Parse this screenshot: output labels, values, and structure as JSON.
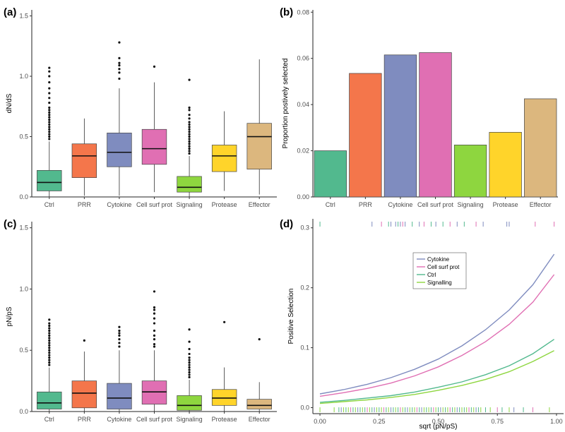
{
  "colors": {
    "Ctrl": "#52b98e",
    "PRR": "#f4764b",
    "Cytokine": "#7f8cbf",
    "Cell surf prot": "#e06fb3",
    "Signaling": "#8ed63f",
    "Protease": "#ffd42a",
    "Effector": "#dcb77e"
  },
  "chart_data": [
    {
      "id": "a",
      "panel_label": "(a)",
      "type": "box",
      "ylabel": "dN/dS",
      "ylim": [
        0,
        1.55
      ],
      "yticks": [
        0.0,
        0.5,
        1.0,
        1.5
      ],
      "ytick_labels": [
        "0.0",
        "0.5",
        "1.0",
        "1.5"
      ],
      "categories": [
        "Ctrl",
        "PRR",
        "Cytokine",
        "Cell surf prot",
        "Signaling",
        "Protease",
        "Effector"
      ],
      "boxes": [
        {
          "min": 0.0,
          "q1": 0.05,
          "median": 0.12,
          "q3": 0.22,
          "max": 0.46,
          "outliers": [
            0.48,
            0.5,
            0.52,
            0.54,
            0.56,
            0.58,
            0.6,
            0.62,
            0.64,
            0.66,
            0.68,
            0.7,
            0.72,
            0.74,
            0.78,
            0.82,
            0.86,
            0.9,
            0.95,
            1.0,
            1.04,
            1.07
          ]
        },
        {
          "min": 0.01,
          "q1": 0.16,
          "median": 0.34,
          "q3": 0.44,
          "max": 0.65,
          "outliers": []
        },
        {
          "min": 0.01,
          "q1": 0.25,
          "median": 0.37,
          "q3": 0.53,
          "max": 0.9,
          "outliers": [
            0.98,
            1.03,
            1.06,
            1.09,
            1.11,
            1.15,
            1.28
          ]
        },
        {
          "min": 0.04,
          "q1": 0.27,
          "median": 0.4,
          "q3": 0.56,
          "max": 0.95,
          "outliers": [
            1.08
          ]
        },
        {
          "min": 0.0,
          "q1": 0.04,
          "median": 0.08,
          "q3": 0.17,
          "max": 0.34,
          "outliers": [
            0.36,
            0.38,
            0.4,
            0.42,
            0.44,
            0.46,
            0.48,
            0.5,
            0.52,
            0.54,
            0.56,
            0.58,
            0.6,
            0.62,
            0.65,
            0.68,
            0.72,
            0.74,
            0.97
          ]
        },
        {
          "min": 0.05,
          "q1": 0.21,
          "median": 0.34,
          "q3": 0.43,
          "max": 0.71,
          "outliers": []
        },
        {
          "min": 0.02,
          "q1": 0.23,
          "median": 0.5,
          "q3": 0.61,
          "max": 1.14,
          "outliers": []
        }
      ]
    },
    {
      "id": "b",
      "panel_label": "(b)",
      "type": "bar",
      "ylabel": "Proportion postively selected",
      "ylim": [
        0,
        0.081
      ],
      "yticks": [
        0.0,
        0.02,
        0.04,
        0.06,
        0.08
      ],
      "ytick_labels": [
        "0.00",
        "0.02",
        "0.04",
        "0.06",
        "0.08"
      ],
      "categories": [
        "Ctrl",
        "PRR",
        "Cytokine",
        "Cell surf prot",
        "Signaling",
        "Protease",
        "Effector"
      ],
      "values": [
        0.02,
        0.0535,
        0.0615,
        0.0625,
        0.0225,
        0.028,
        0.0425
      ]
    },
    {
      "id": "c",
      "panel_label": "(c)",
      "type": "box",
      "ylabel": "pN/pS",
      "ylim": [
        0,
        1.55
      ],
      "yticks": [
        0.0,
        0.5,
        1.0,
        1.5
      ],
      "ytick_labels": [
        "0.0",
        "0.5",
        "1.0",
        "1.5"
      ],
      "categories": [
        "Ctrl",
        "PRR",
        "Cytokine",
        "Cell surf prot",
        "Signaling",
        "Protease",
        "Effector"
      ],
      "boxes": [
        {
          "min": 0.0,
          "q1": 0.02,
          "median": 0.07,
          "q3": 0.16,
          "max": 0.36,
          "outliers": [
            0.38,
            0.4,
            0.42,
            0.44,
            0.46,
            0.48,
            0.5,
            0.52,
            0.54,
            0.56,
            0.58,
            0.6,
            0.62,
            0.64,
            0.66,
            0.68,
            0.7,
            0.72,
            0.75
          ]
        },
        {
          "min": 0.0,
          "q1": 0.03,
          "median": 0.15,
          "q3": 0.25,
          "max": 0.49,
          "outliers": [
            0.58
          ]
        },
        {
          "min": 0.0,
          "q1": 0.02,
          "median": 0.11,
          "q3": 0.23,
          "max": 0.5,
          "outliers": [
            0.53,
            0.56,
            0.59,
            0.62,
            0.64,
            0.66,
            0.69
          ]
        },
        {
          "min": 0.0,
          "q1": 0.06,
          "median": 0.16,
          "q3": 0.25,
          "max": 0.5,
          "outliers": [
            0.53,
            0.55,
            0.59,
            0.62,
            0.66,
            0.72,
            0.76,
            0.8,
            0.83,
            0.85,
            0.98
          ]
        },
        {
          "min": 0.0,
          "q1": 0.01,
          "median": 0.05,
          "q3": 0.13,
          "max": 0.26,
          "outliers": [
            0.28,
            0.3,
            0.32,
            0.34,
            0.36,
            0.38,
            0.4,
            0.42,
            0.44,
            0.47,
            0.51,
            0.57,
            0.67
          ]
        },
        {
          "min": 0.0,
          "q1": 0.05,
          "median": 0.11,
          "q3": 0.18,
          "max": 0.36,
          "outliers": [
            0.73
          ]
        },
        {
          "min": 0.0,
          "q1": 0.02,
          "median": 0.05,
          "q3": 0.1,
          "max": 0.24,
          "outliers": [
            0.59
          ]
        }
      ]
    },
    {
      "id": "d",
      "panel_label": "(d)",
      "type": "line",
      "xlabel": "sqrt (pN/pS)",
      "ylabel": "Positive Selection",
      "xlim": [
        -0.03,
        1.03
      ],
      "ylim": [
        -0.01,
        0.315
      ],
      "xticks": [
        0.0,
        0.25,
        0.5,
        0.75,
        1.0
      ],
      "xtick_labels": [
        "0.00",
        "0.25",
        "0.50",
        "0.75",
        "1.00"
      ],
      "yticks": [
        0.0,
        0.1,
        0.2,
        0.3
      ],
      "ytick_labels": [
        "0.0",
        "0.1",
        "0.2",
        "0.3"
      ],
      "legend_position": "upper-middle",
      "series": [
        {
          "name": "Cytokine",
          "color": "#7f8cbf",
          "x": [
            0.0,
            0.1,
            0.2,
            0.3,
            0.4,
            0.5,
            0.6,
            0.7,
            0.8,
            0.9,
            0.99
          ],
          "y": [
            0.023,
            0.03,
            0.039,
            0.05,
            0.064,
            0.081,
            0.103,
            0.13,
            0.163,
            0.205,
            0.256
          ]
        },
        {
          "name": "Cell surf prot",
          "color": "#e06fb3",
          "x": [
            0.0,
            0.1,
            0.2,
            0.3,
            0.4,
            0.5,
            0.6,
            0.7,
            0.8,
            0.9,
            0.99
          ],
          "y": [
            0.019,
            0.025,
            0.032,
            0.041,
            0.053,
            0.068,
            0.087,
            0.11,
            0.139,
            0.176,
            0.222
          ]
        },
        {
          "name": "Ctrl",
          "color": "#52b98e",
          "x": [
            0.0,
            0.1,
            0.2,
            0.3,
            0.4,
            0.5,
            0.6,
            0.7,
            0.8,
            0.9,
            0.99
          ],
          "y": [
            0.009,
            0.012,
            0.016,
            0.02,
            0.026,
            0.034,
            0.043,
            0.055,
            0.07,
            0.09,
            0.114
          ]
        },
        {
          "name": "Signalling",
          "color": "#8ed63f",
          "x": [
            0.0,
            0.1,
            0.2,
            0.3,
            0.4,
            0.5,
            0.6,
            0.7,
            0.8,
            0.9,
            0.99
          ],
          "y": [
            0.007,
            0.01,
            0.013,
            0.017,
            0.022,
            0.029,
            0.037,
            0.047,
            0.06,
            0.077,
            0.095
          ]
        }
      ],
      "rug_top": [
        {
          "x": 0.0,
          "group": "Ctrl"
        },
        {
          "x": 0.22,
          "group": "Cytokine"
        },
        {
          "x": 0.26,
          "group": "Cell surf prot"
        },
        {
          "x": 0.29,
          "group": "Ctrl"
        },
        {
          "x": 0.3,
          "group": "Cytokine"
        },
        {
          "x": 0.32,
          "group": "Cytokine"
        },
        {
          "x": 0.33,
          "group": "Ctrl"
        },
        {
          "x": 0.34,
          "group": "Cytokine"
        },
        {
          "x": 0.35,
          "group": "Cell surf prot"
        },
        {
          "x": 0.36,
          "group": "Cytokine"
        },
        {
          "x": 0.39,
          "group": "Ctrl"
        },
        {
          "x": 0.42,
          "group": "Cytokine"
        },
        {
          "x": 0.44,
          "group": "Cell surf prot"
        },
        {
          "x": 0.47,
          "group": "Ctrl"
        },
        {
          "x": 0.49,
          "group": "Cytokine"
        },
        {
          "x": 0.52,
          "group": "Ctrl"
        },
        {
          "x": 0.55,
          "group": "Cell surf prot"
        },
        {
          "x": 0.58,
          "group": "Cytokine"
        },
        {
          "x": 0.61,
          "group": "Ctrl"
        },
        {
          "x": 0.66,
          "group": "Cell surf prot"
        },
        {
          "x": 0.69,
          "group": "Cytokine"
        },
        {
          "x": 0.79,
          "group": "Cytokine"
        },
        {
          "x": 0.8,
          "group": "Cytokine"
        },
        {
          "x": 0.91,
          "group": "Cell surf prot"
        },
        {
          "x": 0.99,
          "group": "Cell surf prot"
        }
      ],
      "rug_bottom": [
        {
          "x": 0.0,
          "group": "Signalling"
        },
        {
          "x": 0.06,
          "group": "Signalling"
        },
        {
          "x": 0.08,
          "group": "Ctrl"
        },
        {
          "x": 0.09,
          "group": "Cytokine"
        },
        {
          "x": 0.1,
          "group": "Signalling"
        },
        {
          "x": 0.11,
          "group": "Ctrl"
        },
        {
          "x": 0.12,
          "group": "Signalling"
        },
        {
          "x": 0.13,
          "group": "Cell surf prot"
        },
        {
          "x": 0.14,
          "group": "Ctrl"
        },
        {
          "x": 0.15,
          "group": "Signalling"
        },
        {
          "x": 0.16,
          "group": "Cytokine"
        },
        {
          "x": 0.17,
          "group": "Ctrl"
        },
        {
          "x": 0.18,
          "group": "Signalling"
        },
        {
          "x": 0.19,
          "group": "Ctrl"
        },
        {
          "x": 0.2,
          "group": "Cell surf prot"
        },
        {
          "x": 0.21,
          "group": "Signalling"
        },
        {
          "x": 0.22,
          "group": "Ctrl"
        },
        {
          "x": 0.23,
          "group": "Cytokine"
        },
        {
          "x": 0.24,
          "group": "Signalling"
        },
        {
          "x": 0.25,
          "group": "Ctrl"
        },
        {
          "x": 0.26,
          "group": "Signalling"
        },
        {
          "x": 0.27,
          "group": "Cell surf prot"
        },
        {
          "x": 0.28,
          "group": "Ctrl"
        },
        {
          "x": 0.29,
          "group": "Signalling"
        },
        {
          "x": 0.3,
          "group": "Cytokine"
        },
        {
          "x": 0.31,
          "group": "Ctrl"
        },
        {
          "x": 0.32,
          "group": "Signalling"
        },
        {
          "x": 0.33,
          "group": "Ctrl"
        },
        {
          "x": 0.34,
          "group": "Cell surf prot"
        },
        {
          "x": 0.35,
          "group": "Signalling"
        },
        {
          "x": 0.36,
          "group": "Ctrl"
        },
        {
          "x": 0.37,
          "group": "Cytokine"
        },
        {
          "x": 0.38,
          "group": "Signalling"
        },
        {
          "x": 0.39,
          "group": "Ctrl"
        },
        {
          "x": 0.4,
          "group": "Signalling"
        },
        {
          "x": 0.41,
          "group": "Cell surf prot"
        },
        {
          "x": 0.42,
          "group": "Ctrl"
        },
        {
          "x": 0.43,
          "group": "Cytokine"
        },
        {
          "x": 0.44,
          "group": "Signalling"
        },
        {
          "x": 0.45,
          "group": "Ctrl"
        },
        {
          "x": 0.46,
          "group": "Signalling"
        },
        {
          "x": 0.47,
          "group": "Ctrl"
        },
        {
          "x": 0.48,
          "group": "Cell surf prot"
        },
        {
          "x": 0.49,
          "group": "Signalling"
        },
        {
          "x": 0.5,
          "group": "Ctrl"
        },
        {
          "x": 0.51,
          "group": "Cytokine"
        },
        {
          "x": 0.52,
          "group": "Signalling"
        },
        {
          "x": 0.53,
          "group": "Ctrl"
        },
        {
          "x": 0.54,
          "group": "Signalling"
        },
        {
          "x": 0.55,
          "group": "Cell surf prot"
        },
        {
          "x": 0.56,
          "group": "Ctrl"
        },
        {
          "x": 0.57,
          "group": "Signalling"
        },
        {
          "x": 0.58,
          "group": "Cytokine"
        },
        {
          "x": 0.59,
          "group": "Ctrl"
        },
        {
          "x": 0.6,
          "group": "Signalling"
        },
        {
          "x": 0.61,
          "group": "Ctrl"
        },
        {
          "x": 0.62,
          "group": "Signalling"
        },
        {
          "x": 0.63,
          "group": "Cell surf prot"
        },
        {
          "x": 0.64,
          "group": "Ctrl"
        },
        {
          "x": 0.65,
          "group": "Signalling"
        },
        {
          "x": 0.66,
          "group": "Cytokine"
        },
        {
          "x": 0.67,
          "group": "Ctrl"
        },
        {
          "x": 0.68,
          "group": "Signalling"
        },
        {
          "x": 0.7,
          "group": "Ctrl"
        },
        {
          "x": 0.72,
          "group": "Signalling"
        },
        {
          "x": 0.75,
          "group": "Cell surf prot"
        },
        {
          "x": 0.77,
          "group": "Ctrl"
        },
        {
          "x": 0.8,
          "group": "Signalling"
        },
        {
          "x": 0.82,
          "group": "Cytokine"
        },
        {
          "x": 0.86,
          "group": "Ctrl"
        },
        {
          "x": 0.9,
          "group": "Cell surf prot"
        },
        {
          "x": 0.97,
          "group": "Signalling"
        }
      ]
    }
  ]
}
